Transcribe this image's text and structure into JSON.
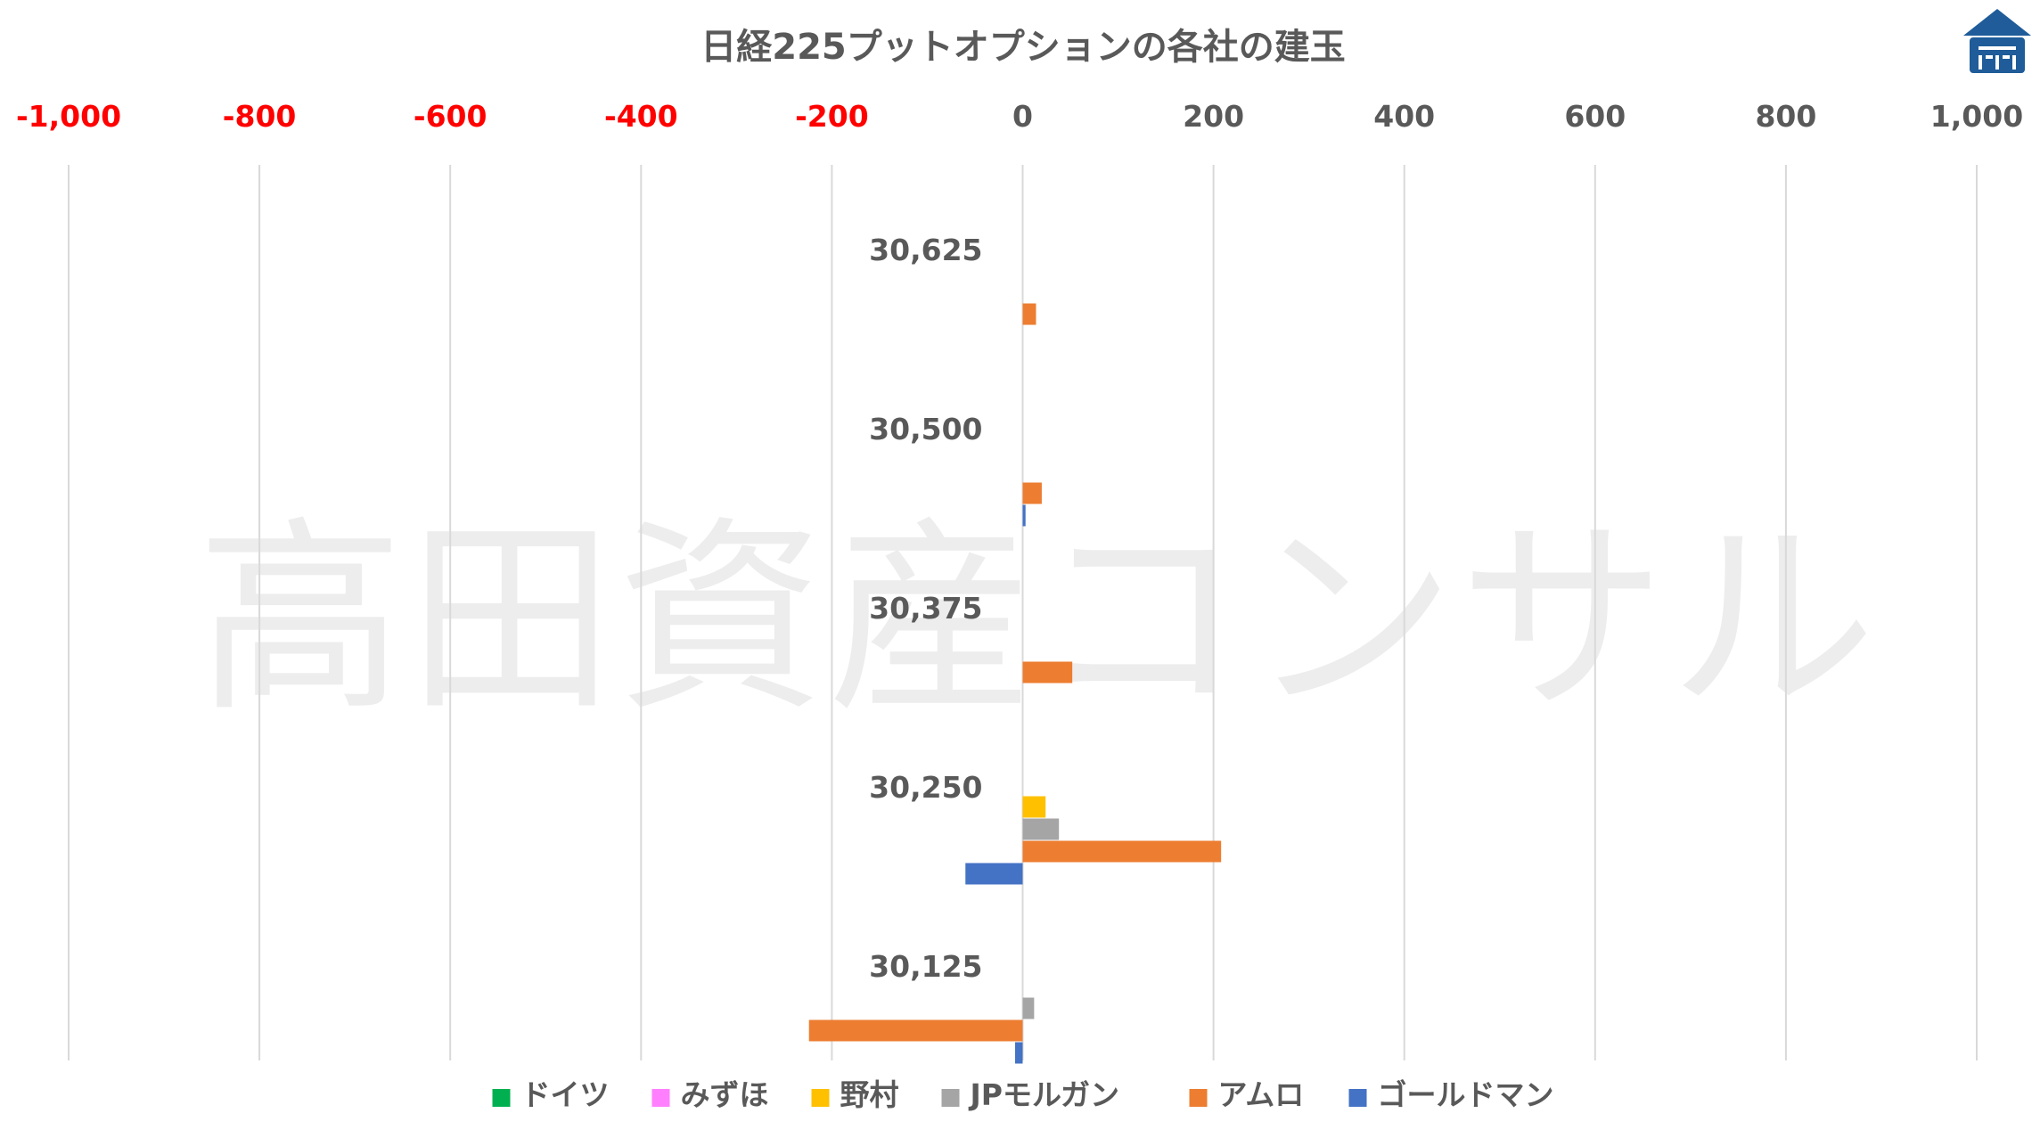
{
  "chart_data": {
    "type": "bar",
    "orientation": "horizontal",
    "title": "日経225プットオプションの各社の建玉",
    "watermark": "高田資産コンサル",
    "x_axis": {
      "position": "top",
      "range": [
        -1000,
        1000
      ],
      "ticks": [
        -1000,
        -800,
        -600,
        -400,
        -200,
        0,
        200,
        400,
        600,
        800,
        1000
      ],
      "tick_labels": [
        "-1,000",
        "-800",
        "-600",
        "-400",
        "-200",
        "0",
        "200",
        "400",
        "600",
        "800",
        "1,000"
      ],
      "negative_label_color": "#FF0000",
      "positive_label_color": "#595959",
      "grid": true
    },
    "categories": [
      "30,625",
      "30,500",
      "30,375",
      "30,250",
      "30,125"
    ],
    "series": [
      {
        "name": "ドイツ",
        "color": "#00B050",
        "values": [
          0,
          0,
          0,
          0,
          0
        ]
      },
      {
        "name": "みずほ",
        "color": "#FF7FFF",
        "values": [
          0,
          0,
          0,
          0,
          0
        ]
      },
      {
        "name": "野村",
        "color": "#FFC000",
        "values": [
          0,
          0,
          0,
          24,
          0
        ]
      },
      {
        "name": "JPモルガン",
        "color": "#A5A5A5",
        "values": [
          0,
          0,
          0,
          38,
          12
        ]
      },
      {
        "name": "アムロ",
        "color": "#ED7D31",
        "values": [
          14,
          20,
          52,
          208,
          -224
        ]
      },
      {
        "name": "ゴールドマン",
        "color": "#4472C4",
        "values": [
          0,
          3,
          0,
          -60,
          -8
        ]
      }
    ],
    "legend_position": "bottom"
  },
  "logo": {
    "name": "roof-logo",
    "color": "#1F5C99"
  }
}
